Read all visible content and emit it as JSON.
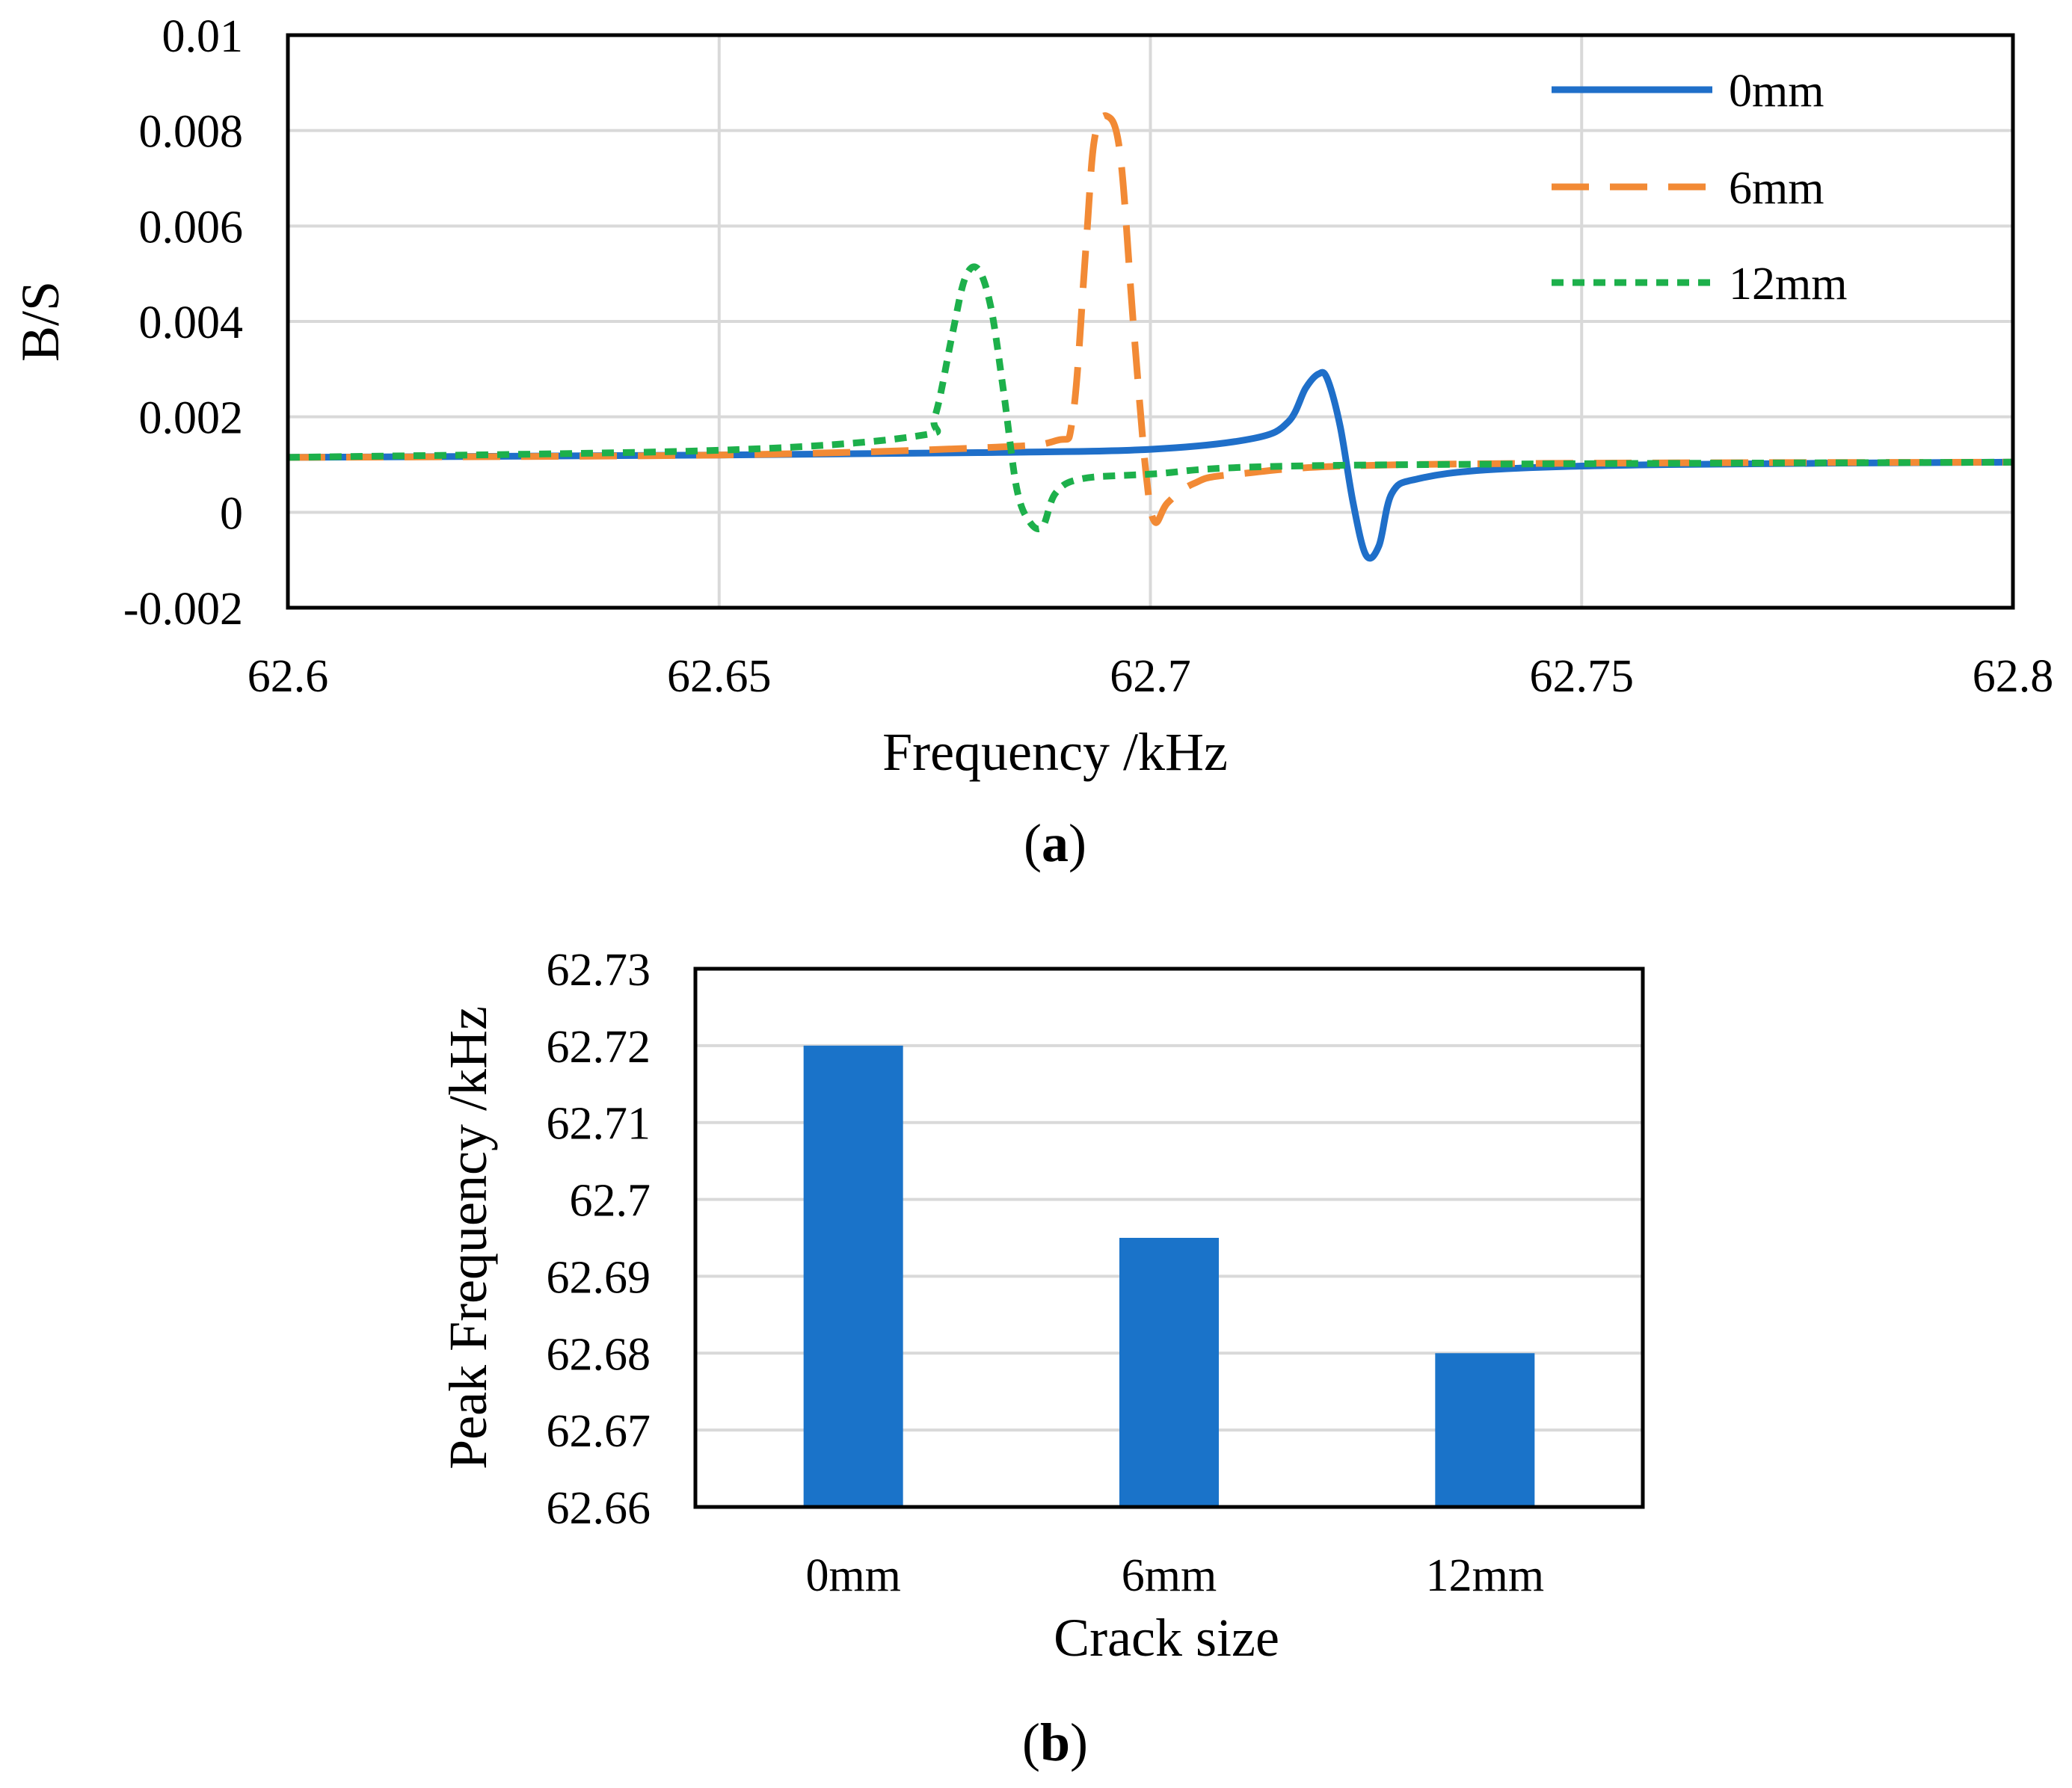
{
  "chart_data": [
    {
      "id": "a",
      "type": "line",
      "caption_label": "a",
      "xlabel": "Frequency /kHz",
      "ylabel": "B/S",
      "xlim": [
        62.6,
        62.8
      ],
      "ylim": [
        -0.002,
        0.01
      ],
      "x_ticks": [
        "62.6",
        "62.65",
        "62.7",
        "62.75",
        "62.8"
      ],
      "x_tick_values": [
        62.6,
        62.65,
        62.7,
        62.75,
        62.8
      ],
      "y_ticks": [
        "0.01",
        "0.008",
        "0.006",
        "0.004",
        "0.002",
        "0",
        "-0.002"
      ],
      "y_tick_values": [
        0.01,
        0.008,
        0.006,
        0.004,
        0.002,
        0,
        -0.002
      ],
      "grid": true,
      "legend_position": "top-right",
      "series": [
        {
          "name": "0mm",
          "color": "#1f6fc9",
          "style": "solid",
          "x": [
            62.6,
            62.65,
            62.68,
            62.7,
            62.712,
            62.716,
            62.718,
            62.7195,
            62.7205,
            62.722,
            62.7235,
            62.725,
            62.7265,
            62.728,
            62.731,
            62.74,
            62.76,
            62.8
          ],
          "y": [
            0.00115,
            0.0012,
            0.00125,
            0.00132,
            0.00155,
            0.0019,
            0.0026,
            0.0029,
            0.0028,
            0.0018,
            0.0002,
            -0.0009,
            -0.0007,
            0.0004,
            0.0007,
            0.0009,
            0.001,
            0.00105
          ]
        },
        {
          "name": "6mm",
          "color": "#f28a35",
          "style": "dashed",
          "x": [
            62.6,
            62.65,
            62.68,
            62.689,
            62.691,
            62.6925,
            62.6935,
            62.695,
            62.6965,
            62.698,
            62.6995,
            62.7005,
            62.702,
            62.705,
            62.71,
            62.73,
            62.8
          ],
          "y": [
            0.00115,
            0.0012,
            0.00135,
            0.0015,
            0.002,
            0.0055,
            0.0078,
            0.0083,
            0.0075,
            0.004,
            0.0008,
            -0.0002,
            0.0002,
            0.0006,
            0.0008,
            0.001,
            0.00105
          ]
        },
        {
          "name": "12mm",
          "color": "#1db04b",
          "style": "dotted",
          "x": [
            62.6,
            62.65,
            62.673,
            62.675,
            62.677,
            62.6785,
            62.68,
            62.6815,
            62.683,
            62.6845,
            62.686,
            62.6875,
            62.689,
            62.692,
            62.7,
            62.72,
            62.8
          ],
          "y": [
            0.00115,
            0.0013,
            0.0016,
            0.002,
            0.0037,
            0.0049,
            0.0051,
            0.0043,
            0.0025,
            0.0005,
            -0.0002,
            -0.0003,
            0.0004,
            0.0007,
            0.0008,
            0.00098,
            0.00105
          ]
        }
      ]
    },
    {
      "id": "b",
      "type": "bar",
      "caption_label": "b",
      "xlabel": "Crack size",
      "ylabel": "Peak Frequency /kHz",
      "categories": [
        "0mm",
        "6mm",
        "12mm"
      ],
      "values": [
        62.72,
        62.695,
        62.68
      ],
      "ylim": [
        62.66,
        62.73
      ],
      "y_ticks": [
        "62.73",
        "62.72",
        "62.71",
        "62.7",
        "62.69",
        "62.68",
        "62.67",
        "62.66"
      ],
      "y_tick_values": [
        62.73,
        62.72,
        62.71,
        62.7,
        62.69,
        62.68,
        62.67,
        62.66
      ],
      "grid": true,
      "bar_color": "#1a73c9"
    }
  ]
}
